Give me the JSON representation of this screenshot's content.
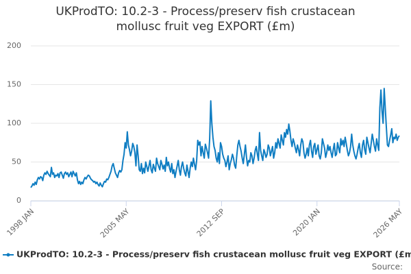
{
  "chart_data": {
    "type": "line",
    "title": "UKProdTO: 10.2-3 - Process/preserv fish crustacean mollusc fruit veg EXPORT (£m)",
    "source": "Source:",
    "categories": [
      "1998 JAN",
      null,
      null,
      null,
      null,
      null,
      null,
      null,
      null,
      null,
      null,
      null,
      null,
      null,
      null,
      null,
      null,
      null,
      null,
      null,
      null,
      null,
      null,
      null,
      null,
      null,
      null,
      null,
      null,
      null,
      null,
      null,
      null,
      null,
      null,
      null,
      null,
      null,
      null,
      null,
      null,
      null,
      null,
      null,
      null,
      null,
      null,
      null,
      null,
      null,
      null,
      null,
      null,
      null,
      null,
      null,
      null,
      null,
      null,
      null,
      null,
      null,
      null,
      null,
      null,
      null,
      null,
      null,
      null,
      null,
      null,
      null,
      null,
      null,
      null,
      null,
      null,
      null,
      null,
      null,
      null,
      null,
      null,
      null,
      null,
      null,
      null,
      null,
      "2005 MAY",
      null,
      null,
      null,
      null,
      null,
      null,
      null,
      null,
      null,
      null,
      null,
      null,
      null,
      null,
      null,
      null,
      null,
      null,
      null,
      null,
      null,
      null,
      null,
      null,
      null,
      null,
      null,
      null,
      null,
      null,
      null,
      null,
      null,
      null,
      null,
      null,
      null,
      null,
      null,
      null,
      null,
      null,
      null,
      null,
      null,
      null,
      null,
      null,
      null,
      null,
      null,
      null,
      null,
      null,
      null,
      null,
      null,
      null,
      null,
      null,
      null,
      null,
      null,
      null,
      null,
      null,
      null,
      null,
      null,
      null,
      null,
      null,
      null,
      null,
      null,
      null,
      null,
      null,
      null,
      null,
      null,
      null,
      null,
      null,
      null,
      null,
      null,
      "2012 SEP",
      null,
      null,
      null,
      null,
      null,
      null,
      null,
      null,
      null,
      null,
      null,
      null,
      null,
      null,
      null,
      null,
      null,
      null,
      null,
      null,
      null,
      null,
      null,
      null,
      null,
      null,
      null,
      null,
      null,
      null,
      null,
      null,
      null,
      null,
      null,
      null,
      null,
      null,
      null,
      null,
      null,
      null,
      null,
      null,
      null,
      null,
      null,
      null,
      null,
      null,
      null,
      null,
      null,
      null,
      null,
      null,
      null,
      null,
      null,
      null,
      null,
      null,
      null,
      null,
      null,
      null,
      null,
      null,
      null,
      null,
      null,
      null,
      null,
      null,
      null,
      null,
      null,
      null,
      null,
      null,
      null,
      null,
      null,
      null,
      null,
      null,
      null,
      "2020 JAN",
      null,
      null,
      null,
      null,
      null,
      null,
      null,
      null,
      null,
      null,
      null,
      null,
      null,
      null,
      null,
      null,
      null,
      null,
      null,
      null,
      null,
      null,
      null,
      null,
      null,
      null,
      null,
      null,
      null,
      null,
      null,
      null,
      null,
      null,
      null,
      null,
      null,
      null,
      null,
      null,
      null,
      null,
      null,
      null,
      null,
      null,
      null,
      null,
      null,
      null,
      null,
      null,
      null,
      null,
      null,
      null,
      null,
      null,
      null,
      null,
      null,
      null,
      null,
      null,
      null,
      null,
      null,
      null,
      null,
      null,
      null,
      null,
      null,
      null,
      null,
      "2026 MAY"
    ],
    "series": [
      {
        "name": "UKProdTO: 10.2-3 - Process/preserv fish crustacean mollusc fruit veg EXPORT (£m)",
        "color": "#0f7dc2",
        "values": [
          17,
          19,
          22,
          20,
          24,
          21,
          27,
          30,
          28,
          31,
          30,
          26,
          33,
          36,
          34,
          38,
          35,
          33,
          31,
          43,
          34,
          36,
          30,
          33,
          32,
          35,
          30,
          36,
          37,
          33,
          29,
          35,
          37,
          34,
          36,
          31,
          34,
          37,
          31,
          38,
          35,
          32,
          36,
          27,
          22,
          25,
          21,
          24,
          22,
          27,
          30,
          28,
          31,
          33,
          32,
          29,
          27,
          26,
          24,
          25,
          22,
          24,
          21,
          19,
          23,
          20,
          18,
          22,
          25,
          24,
          28,
          27,
          30,
          34,
          38,
          45,
          48,
          42,
          36,
          33,
          30,
          36,
          39,
          37,
          40,
          52,
          60,
          75,
          68,
          89,
          72,
          66,
          58,
          64,
          74,
          70,
          62,
          45,
          72,
          58,
          40,
          38,
          48,
          35,
          42,
          36,
          50,
          44,
          38,
          45,
          52,
          40,
          36,
          47,
          42,
          38,
          55,
          48,
          44,
          40,
          52,
          47,
          41,
          46,
          38,
          56,
          45,
          50,
          42,
          37,
          48,
          35,
          40,
          30,
          38,
          45,
          52,
          40,
          33,
          44,
          50,
          42,
          36,
          32,
          46,
          38,
          30,
          42,
          50,
          44,
          55,
          47,
          40,
          52,
          78,
          72,
          76,
          58,
          70,
          62,
          55,
          73,
          68,
          62,
          55,
          80,
          129,
          100,
          82,
          70,
          65,
          55,
          50,
          62,
          48,
          75,
          70,
          60,
          55,
          52,
          44,
          50,
          58,
          40,
          48,
          53,
          60,
          55,
          46,
          42,
          58,
          72,
          78,
          70,
          64,
          55,
          48,
          60,
          72,
          56,
          45,
          52,
          50,
          62,
          58,
          48,
          55,
          65,
          70,
          60,
          52,
          88,
          65,
          58,
          52,
          66,
          62,
          56,
          60,
          72,
          68,
          58,
          64,
          70,
          55,
          62,
          75,
          68,
          80,
          74,
          68,
          85,
          78,
          72,
          88,
          82,
          92,
          86,
          99,
          90,
          78,
          70,
          80,
          75,
          68,
          62,
          72,
          66,
          58,
          72,
          80,
          76,
          62,
          55,
          60,
          68,
          58,
          72,
          78,
          64,
          56,
          70,
          74,
          60,
          66,
          72,
          58,
          54,
          62,
          80,
          74,
          68,
          56,
          62,
          72,
          65,
          70,
          62,
          56,
          66,
          74,
          58,
          60,
          75,
          68,
          62,
          80,
          72,
          78,
          70,
          82,
          74,
          65,
          58,
          62,
          70,
          86,
          72,
          64,
          58,
          54,
          60,
          68,
          74,
          62,
          56,
          72,
          78,
          66,
          60,
          82,
          75,
          68,
          62,
          74,
          86,
          78,
          70,
          64,
          80,
          72,
          65,
          120,
          143,
          116,
          100,
          145,
          120,
          95,
          72,
          70,
          78,
          85,
          93,
          75,
          82,
          80,
          86,
          78,
          82,
          84
        ]
      }
    ],
    "ylim": [
      0,
      200
    ],
    "yticks": [
      0,
      50,
      100,
      150,
      200
    ],
    "grid": true,
    "legend": "bottom"
  }
}
